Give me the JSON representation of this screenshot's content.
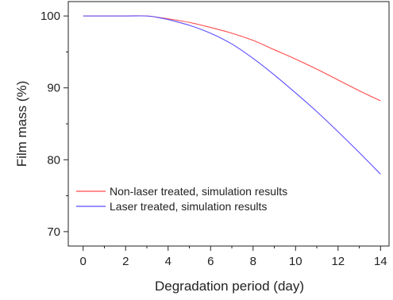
{
  "chart_data": {
    "type": "line",
    "title": "",
    "xlabel": "Degradation period (day)",
    "ylabel": "Film mass (%)",
    "xlim": [
      -0.7,
      14.4
    ],
    "ylim": [
      68,
      102
    ],
    "xticks": [
      0,
      2,
      4,
      6,
      8,
      10,
      12,
      14
    ],
    "yticks": [
      70,
      80,
      90,
      100
    ],
    "grid": false,
    "legend_position": "lower-left",
    "series": [
      {
        "name": "Non-laser treated, simulation results",
        "color": "#ff4a4a",
        "x": [
          0,
          1,
          2,
          3,
          4,
          5,
          6,
          7,
          8,
          9,
          10,
          11,
          12,
          13,
          14
        ],
        "y": [
          100,
          100,
          100,
          100,
          99.6,
          99.1,
          98.4,
          97.6,
          96.6,
          95.3,
          94.0,
          92.6,
          91.1,
          89.6,
          88.2
        ]
      },
      {
        "name": "Laser treated, simulation results",
        "color": "#5a4cff",
        "x": [
          0,
          1,
          2,
          3,
          3.5,
          4,
          5,
          6,
          7,
          8,
          9,
          10,
          11,
          12,
          13,
          14
        ],
        "y": [
          100,
          100,
          100,
          100,
          99.8,
          99.5,
          98.7,
          97.6,
          96.1,
          94.1,
          91.8,
          89.3,
          86.7,
          83.9,
          81.0,
          78.0
        ]
      }
    ]
  }
}
